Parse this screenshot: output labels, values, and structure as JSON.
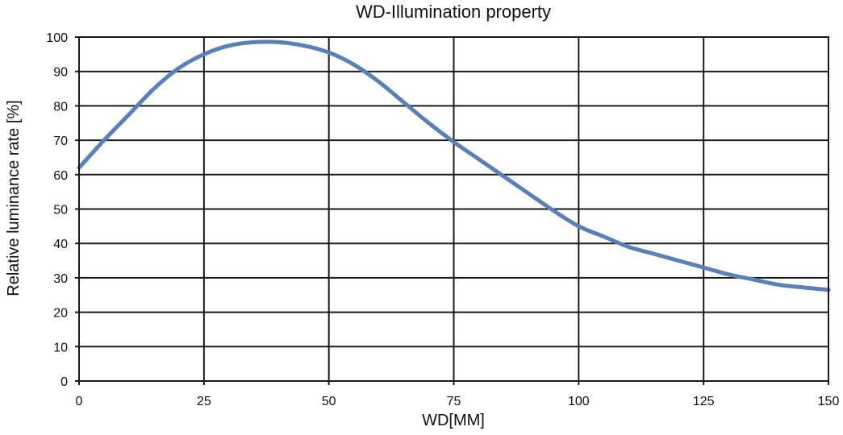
{
  "chart_data": {
    "type": "line",
    "title": "WD-Illumination property",
    "xlabel": "WD[MM]",
    "ylabel": "Relative luminance rate [%]",
    "xlim": [
      0,
      150
    ],
    "ylim": [
      0,
      100
    ],
    "xticks": [
      0,
      25,
      50,
      75,
      100,
      125,
      150
    ],
    "yticks": [
      0,
      10,
      20,
      30,
      40,
      50,
      60,
      70,
      80,
      90,
      100
    ],
    "grid": true,
    "colors": {
      "line": "#5a81b7",
      "grid": "#1a1a1a"
    },
    "series": [
      {
        "x": [
          0,
          5,
          10,
          15,
          20,
          25,
          30,
          35,
          40,
          45,
          50,
          55,
          60,
          65,
          70,
          75,
          80,
          85,
          90,
          95,
          100,
          105,
          110,
          115,
          120,
          125,
          130,
          135,
          140,
          145,
          150
        ],
        "y": [
          62,
          70,
          77.5,
          85,
          91,
          95,
          97.5,
          98.5,
          98.5,
          97.5,
          95.5,
          92,
          87,
          81,
          75,
          69.5,
          64.5,
          59.5,
          54.5,
          49.5,
          45,
          42,
          39,
          37,
          35,
          33,
          31,
          29.5,
          28,
          27.2,
          26.5
        ]
      }
    ]
  }
}
